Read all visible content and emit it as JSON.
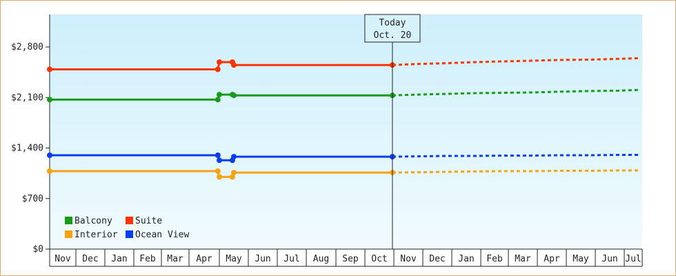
{
  "chart_data": {
    "type": "line",
    "y_ticks": [
      "$0",
      "$700",
      "$1,400",
      "$2,100",
      "$2,800"
    ],
    "y_tick_values": [
      0,
      700,
      1400,
      2100,
      2800
    ],
    "ylim": [
      0,
      3250
    ],
    "grid": false,
    "x_months": [
      "Nov",
      "Dec",
      "Jan",
      "Feb",
      "Mar",
      "Apr",
      "May",
      "Jun",
      "Jul",
      "Aug",
      "Sep",
      "Oct",
      "Nov",
      "Dec",
      "Jan",
      "Feb",
      "Mar",
      "Apr",
      "May",
      "Jun",
      "Jul"
    ],
    "today": {
      "line1": "Today",
      "line2": "Oct. 20",
      "month_index": 11.95
    },
    "legend": {
      "placement": "bottom-left",
      "entries": [
        {
          "name": "Balcony",
          "color": "#1a9a1a"
        },
        {
          "name": "Suite",
          "color": "#ff3300"
        },
        {
          "name": "Interior",
          "color": "#f5a310"
        },
        {
          "name": "Ocean View",
          "color": "#0a3cf0"
        }
      ]
    },
    "series": [
      {
        "name": "Suite",
        "color": "#ff3300",
        "actual": [
          [
            0,
            2490
          ],
          [
            5.95,
            2490
          ],
          [
            6.0,
            2590
          ],
          [
            6.45,
            2590
          ],
          [
            6.5,
            2550
          ],
          [
            11.95,
            2550
          ]
        ],
        "markers": [
          [
            0,
            2490
          ],
          [
            5.95,
            2490
          ],
          [
            6.0,
            2590
          ],
          [
            6.45,
            2590
          ],
          [
            6.5,
            2550
          ],
          [
            11.95,
            2550
          ]
        ],
        "forecast": [
          [
            11.95,
            2550
          ],
          [
            12.8,
            2565
          ],
          [
            13.8,
            2575
          ],
          [
            14.8,
            2590
          ],
          [
            15.8,
            2600
          ],
          [
            16.8,
            2610
          ],
          [
            17.8,
            2620
          ],
          [
            18.8,
            2625
          ],
          [
            19.8,
            2635
          ],
          [
            20.8,
            2645
          ]
        ]
      },
      {
        "name": "Balcony",
        "color": "#1a9a1a",
        "actual": [
          [
            0,
            2070
          ],
          [
            5.95,
            2070
          ],
          [
            6.0,
            2140
          ],
          [
            6.45,
            2140
          ],
          [
            6.5,
            2130
          ],
          [
            11.95,
            2130
          ]
        ],
        "markers": [
          [
            0,
            2070
          ],
          [
            5.95,
            2070
          ],
          [
            6.0,
            2140
          ],
          [
            6.45,
            2140
          ],
          [
            6.5,
            2130
          ],
          [
            11.95,
            2130
          ]
        ],
        "forecast": [
          [
            11.95,
            2130
          ],
          [
            12.8,
            2140
          ],
          [
            13.8,
            2150
          ],
          [
            14.8,
            2160
          ],
          [
            15.8,
            2165
          ],
          [
            16.8,
            2170
          ],
          [
            17.8,
            2180
          ],
          [
            18.8,
            2190
          ],
          [
            19.8,
            2195
          ],
          [
            20.8,
            2205
          ]
        ]
      },
      {
        "name": "Ocean View",
        "color": "#0a3cf0",
        "actual": [
          [
            0,
            1300
          ],
          [
            5.95,
            1300
          ],
          [
            6.0,
            1230
          ],
          [
            6.45,
            1230
          ],
          [
            6.5,
            1280
          ],
          [
            11.95,
            1280
          ]
        ],
        "markers": [
          [
            0,
            1300
          ],
          [
            5.95,
            1300
          ],
          [
            6.0,
            1230
          ],
          [
            6.45,
            1230
          ],
          [
            6.5,
            1280
          ],
          [
            11.95,
            1280
          ]
        ],
        "forecast": [
          [
            11.95,
            1280
          ],
          [
            12.8,
            1285
          ],
          [
            13.8,
            1290
          ],
          [
            14.8,
            1290
          ],
          [
            15.8,
            1295
          ],
          [
            16.8,
            1295
          ],
          [
            17.8,
            1300
          ],
          [
            18.8,
            1300
          ],
          [
            19.8,
            1305
          ],
          [
            20.8,
            1305
          ]
        ]
      },
      {
        "name": "Interior",
        "color": "#f5a310",
        "actual": [
          [
            0,
            1080
          ],
          [
            5.95,
            1080
          ],
          [
            6.0,
            1000
          ],
          [
            6.45,
            1000
          ],
          [
            6.5,
            1060
          ],
          [
            11.95,
            1060
          ]
        ],
        "markers": [
          [
            0,
            1080
          ],
          [
            5.95,
            1080
          ],
          [
            6.0,
            1000
          ],
          [
            6.45,
            1000
          ],
          [
            6.5,
            1060
          ],
          [
            11.95,
            1060
          ]
        ],
        "forecast": [
          [
            11.95,
            1060
          ],
          [
            12.8,
            1065
          ],
          [
            13.8,
            1070
          ],
          [
            14.8,
            1075
          ],
          [
            15.8,
            1080
          ],
          [
            16.8,
            1080
          ],
          [
            17.8,
            1085
          ],
          [
            18.8,
            1085
          ],
          [
            19.8,
            1090
          ],
          [
            20.8,
            1090
          ]
        ]
      }
    ]
  }
}
